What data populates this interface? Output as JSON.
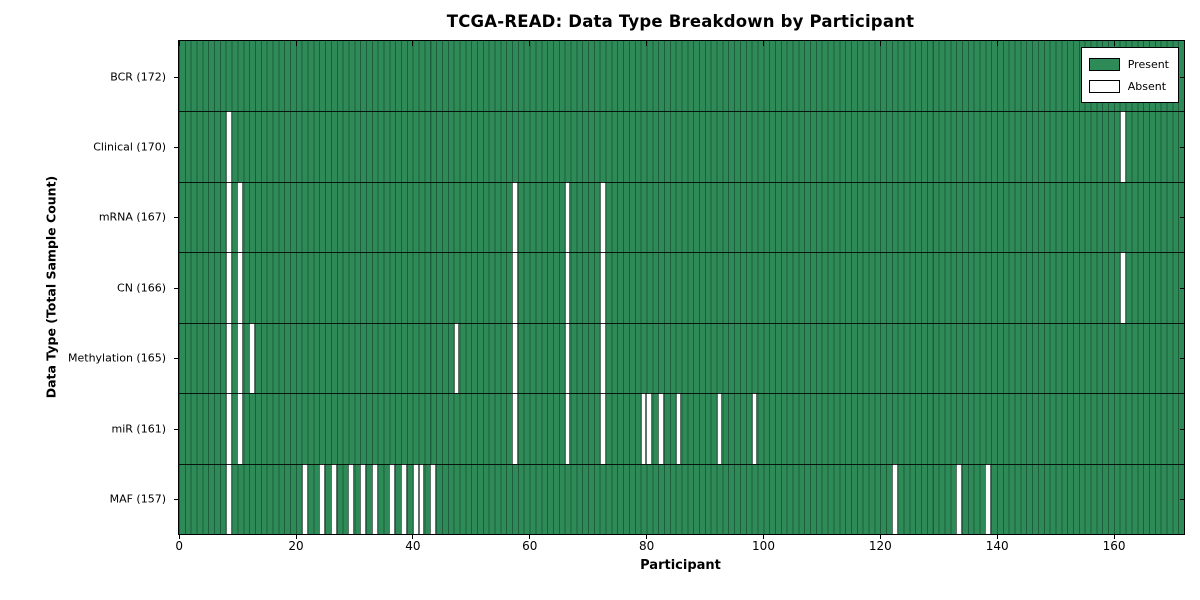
{
  "chart_data": {
    "type": "heatmap",
    "title": "TCGA-READ: Data Type Breakdown by Participant",
    "xlabel": "Participant",
    "ylabel": "Data Type (Total Sample Count)",
    "n_participants": 172,
    "xlim": [
      0,
      172
    ],
    "xticks": [
      0,
      20,
      40,
      60,
      80,
      100,
      120,
      140,
      160
    ],
    "legend": [
      {
        "label": "Present",
        "color": "#2e8b57"
      },
      {
        "label": "Absent",
        "color": "#ffffff"
      }
    ],
    "legend_position": "upper right",
    "grid": "cell-borders",
    "rows": [
      {
        "label": "BCR (172)",
        "data_type": "BCR",
        "total_sample_count": 172,
        "absent_participants": []
      },
      {
        "label": "Clinical (170)",
        "data_type": "Clinical",
        "total_sample_count": 170,
        "absent_participants": [
          8,
          161
        ]
      },
      {
        "label": "mRNA (167)",
        "data_type": "mRNA",
        "total_sample_count": 167,
        "absent_participants": [
          8,
          10,
          57,
          66,
          72
        ]
      },
      {
        "label": "CN (166)",
        "data_type": "CN",
        "total_sample_count": 166,
        "absent_participants": [
          8,
          10,
          57,
          66,
          72,
          161
        ]
      },
      {
        "label": "Methylation (165)",
        "data_type": "Methylation",
        "total_sample_count": 165,
        "absent_participants": [
          8,
          10,
          12,
          47,
          57,
          66,
          72
        ]
      },
      {
        "label": "miR (161)",
        "data_type": "miR",
        "total_sample_count": 161,
        "absent_participants": [
          8,
          10,
          57,
          66,
          72,
          79,
          80,
          82,
          85,
          92,
          98
        ]
      },
      {
        "label": "MAF (157)",
        "data_type": "MAF",
        "total_sample_count": 157,
        "absent_participants": [
          8,
          21,
          24,
          26,
          29,
          31,
          33,
          36,
          38,
          40,
          41,
          43,
          122,
          133,
          138
        ]
      }
    ],
    "colors": {
      "present": "#2e8b57",
      "absent": "#ffffff",
      "cell_edge": "#1d5c3c",
      "row_separator": "#000000",
      "frame": "#000000",
      "background": "#ffffff"
    }
  }
}
